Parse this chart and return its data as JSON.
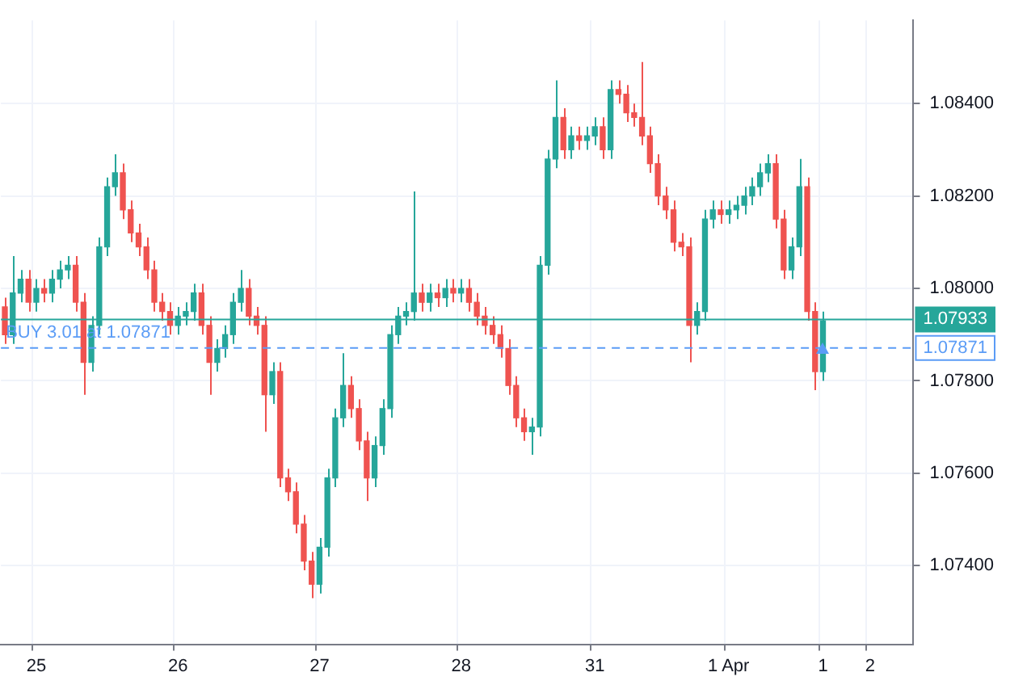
{
  "chart_data": {
    "type": "candlestick",
    "categories": [
      null,
      null,
      null,
      null,
      "25",
      null,
      null,
      null,
      null,
      null,
      null,
      null,
      null,
      null,
      null,
      null,
      null,
      null,
      null,
      null,
      null,
      null,
      "26",
      null,
      null,
      null,
      null,
      null,
      null,
      null,
      null,
      null,
      null,
      null,
      null,
      null,
      null,
      null,
      null,
      null,
      "27",
      null,
      null,
      null,
      null,
      null,
      null,
      null,
      null,
      null,
      null,
      null,
      null,
      null,
      null,
      null,
      null,
      null,
      "28",
      null,
      null,
      null,
      null,
      null,
      null,
      null,
      null,
      null,
      null,
      null,
      null,
      null,
      null,
      null,
      null,
      "31",
      null,
      null,
      null,
      null,
      null,
      null,
      null,
      null,
      null,
      null,
      null,
      null,
      null,
      null,
      null,
      null,
      "1 Apr",
      null,
      null,
      null,
      null,
      null,
      null,
      null,
      null,
      null,
      null,
      null,
      "1",
      null,
      null,
      null,
      null,
      null,
      "2",
      null,
      null,
      null,
      null,
      null
    ],
    "ohlc": [
      [
        1.0796,
        1.0798,
        1.0788,
        1.079
      ],
      [
        1.079,
        1.0807,
        1.0788,
        1.0799
      ],
      [
        1.0799,
        1.0804,
        1.0797,
        1.0802
      ],
      [
        1.0802,
        1.0804,
        1.0795,
        1.0797
      ],
      [
        1.0797,
        1.0802,
        1.0795,
        1.08
      ],
      [
        1.08,
        1.0802,
        1.0797,
        1.0799
      ],
      [
        1.0799,
        1.0804,
        1.0797,
        1.0802
      ],
      [
        1.0802,
        1.0806,
        1.08,
        1.0804
      ],
      [
        1.0804,
        1.0807,
        1.0802,
        1.0805
      ],
      [
        1.0805,
        1.0807,
        1.0795,
        1.0797
      ],
      [
        1.0797,
        1.0799,
        1.0777,
        1.0784
      ],
      [
        1.0784,
        1.0794,
        1.0782,
        1.0792
      ],
      [
        1.0792,
        1.0811,
        1.079,
        1.0809
      ],
      [
        1.0809,
        1.0824,
        1.0807,
        1.0822
      ],
      [
        1.0822,
        1.0829,
        1.082,
        1.0825
      ],
      [
        1.0825,
        1.0827,
        1.0815,
        1.0817
      ],
      [
        1.0817,
        1.0819,
        1.081,
        1.0812
      ],
      [
        1.0812,
        1.0814,
        1.0807,
        1.0809
      ],
      [
        1.0809,
        1.0811,
        1.0802,
        1.0804
      ],
      [
        1.0804,
        1.0806,
        1.0795,
        1.0797
      ],
      [
        1.0797,
        1.0799,
        1.0793,
        1.0795
      ],
      [
        1.0795,
        1.0797,
        1.079,
        1.0792
      ],
      [
        1.0792,
        1.0796,
        1.079,
        1.0794
      ],
      [
        1.0794,
        1.0797,
        1.0792,
        1.0795
      ],
      [
        1.0795,
        1.0801,
        1.0793,
        1.0799
      ],
      [
        1.0799,
        1.0801,
        1.079,
        1.0792
      ],
      [
        1.0792,
        1.0794,
        1.0777,
        1.0784
      ],
      [
        1.0784,
        1.0789,
        1.0782,
        1.0787
      ],
      [
        1.0787,
        1.0792,
        1.0785,
        1.079
      ],
      [
        1.079,
        1.0799,
        1.0788,
        1.0797
      ],
      [
        1.0797,
        1.0804,
        1.0795,
        1.08
      ],
      [
        1.08,
        1.0802,
        1.0792,
        1.0794
      ],
      [
        1.0794,
        1.0796,
        1.079,
        1.0792
      ],
      [
        1.0792,
        1.0794,
        1.0769,
        1.0777
      ],
      [
        1.0777,
        1.0784,
        1.0775,
        1.0782
      ],
      [
        1.0782,
        1.0784,
        1.0757,
        1.0759
      ],
      [
        1.0759,
        1.0761,
        1.0754,
        1.0756
      ],
      [
        1.0756,
        1.0758,
        1.0747,
        1.0749
      ],
      [
        1.0749,
        1.0751,
        1.0739,
        1.0741
      ],
      [
        1.0741,
        1.0743,
        1.0733,
        1.0736
      ],
      [
        1.0736,
        1.0746,
        1.0734,
        1.0744
      ],
      [
        1.0744,
        1.0761,
        1.0742,
        1.0759
      ],
      [
        1.0759,
        1.0774,
        1.0757,
        1.0772
      ],
      [
        1.0772,
        1.0786,
        1.077,
        1.0779
      ],
      [
        1.0779,
        1.0781,
        1.0772,
        1.0774
      ],
      [
        1.0774,
        1.0776,
        1.0765,
        1.0767
      ],
      [
        1.0767,
        1.0769,
        1.0754,
        1.0759
      ],
      [
        1.0759,
        1.0768,
        1.0757,
        1.0766
      ],
      [
        1.0766,
        1.0776,
        1.0764,
        1.0774
      ],
      [
        1.0774,
        1.0792,
        1.0772,
        1.079
      ],
      [
        1.079,
        1.0796,
        1.0788,
        1.0794
      ],
      [
        1.0794,
        1.0797,
        1.0792,
        1.0795
      ],
      [
        1.0795,
        1.0821,
        1.0793,
        1.0799
      ],
      [
        1.0799,
        1.0801,
        1.0795,
        1.0797
      ],
      [
        1.0797,
        1.0801,
        1.0795,
        1.0799
      ],
      [
        1.0799,
        1.0801,
        1.0796,
        1.0798
      ],
      [
        1.0798,
        1.0802,
        1.0796,
        1.08
      ],
      [
        1.08,
        1.0802,
        1.0797,
        1.0799
      ],
      [
        1.0799,
        1.0802,
        1.0797,
        1.08
      ],
      [
        1.08,
        1.0802,
        1.0795,
        1.0797
      ],
      [
        1.0797,
        1.0799,
        1.0792,
        1.0794
      ],
      [
        1.0794,
        1.0796,
        1.079,
        1.0792
      ],
      [
        1.0792,
        1.0794,
        1.0788,
        1.079
      ],
      [
        1.079,
        1.0792,
        1.0785,
        1.0787
      ],
      [
        1.0787,
        1.0789,
        1.0777,
        1.0779
      ],
      [
        1.0779,
        1.0781,
        1.077,
        1.0772
      ],
      [
        1.0772,
        1.0774,
        1.0767,
        1.0769
      ],
      [
        1.0769,
        1.0772,
        1.0764,
        1.077
      ],
      [
        1.077,
        1.0807,
        1.0768,
        1.0805
      ],
      [
        1.0805,
        1.083,
        1.0803,
        1.0828
      ],
      [
        1.0828,
        1.0845,
        1.0826,
        1.0837
      ],
      [
        1.0837,
        1.0839,
        1.0828,
        1.083
      ],
      [
        1.083,
        1.0835,
        1.0828,
        1.0833
      ],
      [
        1.0833,
        1.0835,
        1.083,
        1.0832
      ],
      [
        1.0832,
        1.0835,
        1.083,
        1.0833
      ],
      [
        1.0833,
        1.0837,
        1.0831,
        1.0835
      ],
      [
        1.0835,
        1.0837,
        1.0828,
        1.083
      ],
      [
        1.083,
        1.0845,
        1.0828,
        1.0843
      ],
      [
        1.0843,
        1.0845,
        1.084,
        1.0842
      ],
      [
        1.0842,
        1.0844,
        1.0836,
        1.0838
      ],
      [
        1.0838,
        1.084,
        1.0835,
        1.0837
      ],
      [
        1.0837,
        1.0849,
        1.0831,
        1.0833
      ],
      [
        1.0833,
        1.0835,
        1.0825,
        1.0827
      ],
      [
        1.0827,
        1.0829,
        1.0818,
        1.082
      ],
      [
        1.082,
        1.0822,
        1.0815,
        1.0817
      ],
      [
        1.0817,
        1.0819,
        1.0808,
        1.081
      ],
      [
        1.081,
        1.0812,
        1.0807,
        1.0809
      ],
      [
        1.0809,
        1.0811,
        1.0784,
        1.0792
      ],
      [
        1.0792,
        1.0797,
        1.079,
        1.0795
      ],
      [
        1.0795,
        1.0817,
        1.0793,
        1.0815
      ],
      [
        1.0815,
        1.0819,
        1.0813,
        1.0817
      ],
      [
        1.0817,
        1.0819,
        1.0814,
        1.0816
      ],
      [
        1.0816,
        1.0819,
        1.0814,
        1.0817
      ],
      [
        1.0817,
        1.082,
        1.0815,
        1.0818
      ],
      [
        1.0818,
        1.0822,
        1.0816,
        1.082
      ],
      [
        1.082,
        1.0824,
        1.0818,
        1.0822
      ],
      [
        1.0822,
        1.0827,
        1.082,
        1.0825
      ],
      [
        1.0825,
        1.0829,
        1.0823,
        1.0827
      ],
      [
        1.0827,
        1.0829,
        1.0813,
        1.0815
      ],
      [
        1.0815,
        1.0817,
        1.0802,
        1.0804
      ],
      [
        1.0804,
        1.0811,
        1.0802,
        1.0809
      ],
      [
        1.0809,
        1.0828,
        1.0807,
        1.0822
      ],
      [
        1.0822,
        1.0824,
        1.0793,
        1.0795
      ],
      [
        1.0795,
        1.0797,
        1.0778,
        1.0782
      ],
      [
        1.0782,
        1.0795,
        1.078,
        1.0793
      ],
      null,
      null,
      null,
      null,
      null,
      null,
      null,
      null,
      null,
      null,
      null
    ],
    "colors": [
      "#ef5350",
      "#26a69a",
      "#26a69a",
      "#ef5350",
      "#26a69a",
      "#ef5350",
      "#26a69a",
      "#26a69a",
      "#26a69a",
      "#ef5350",
      "#ef5350",
      "#26a69a",
      "#26a69a",
      "#26a69a",
      "#26a69a",
      "#ef5350",
      "#ef5350",
      "#ef5350",
      "#ef5350",
      "#ef5350",
      "#ef5350",
      "#ef5350",
      "#26a69a",
      "#26a69a",
      "#26a69a",
      "#ef5350",
      "#ef5350",
      "#26a69a",
      "#26a69a",
      "#26a69a",
      "#26a69a",
      "#ef5350",
      "#ef5350",
      "#ef5350",
      "#26a69a",
      "#ef5350",
      "#ef5350",
      "#ef5350",
      "#ef5350",
      "#ef5350",
      "#26a69a",
      "#26a69a",
      "#26a69a",
      "#26a69a",
      "#ef5350",
      "#ef5350",
      "#ef5350",
      "#26a69a",
      "#26a69a",
      "#26a69a",
      "#26a69a",
      "#26a69a",
      "#26a69a",
      "#ef5350",
      "#26a69a",
      "#ef5350",
      "#26a69a",
      "#ef5350",
      "#26a69a",
      "#ef5350",
      "#ef5350",
      "#ef5350",
      "#ef5350",
      "#ef5350",
      "#ef5350",
      "#ef5350",
      "#ef5350",
      "#26a69a",
      "#26a69a",
      "#26a69a",
      "#26a69a",
      "#ef5350",
      "#26a69a",
      "#ef5350",
      "#26a69a",
      "#26a69a",
      "#ef5350",
      "#26a69a",
      "#ef5350",
      "#ef5350",
      "#ef5350",
      "#ef5350",
      "#ef5350",
      "#ef5350",
      "#ef5350",
      "#ef5350",
      "#ef5350",
      "#ef5350",
      "#26a69a",
      "#26a69a",
      "#26a69a",
      "#ef5350",
      "#26a69a",
      "#26a69a",
      "#26a69a",
      "#26a69a",
      "#26a69a",
      "#26a69a",
      "#ef5350",
      "#ef5350",
      "#26a69a",
      "#26a69a",
      "#ef5350",
      "#ef5350",
      "#26a69a",
      null,
      null,
      null,
      null,
      null,
      null,
      null,
      null,
      null,
      null,
      null
    ],
    "ylim": [
      1.0723,
      1.0858
    ],
    "yticks": [
      {
        "value": 1.074,
        "label": "1.07400"
      },
      {
        "value": 1.076,
        "label": "1.07600"
      },
      {
        "value": 1.078,
        "label": "1.07800"
      },
      {
        "value": 1.08,
        "label": "1.08000"
      },
      {
        "value": 1.082,
        "label": "1.08200"
      },
      {
        "value": 1.084,
        "label": "1.08400"
      }
    ],
    "ref_lines": [
      {
        "axis": "y",
        "value": 1.07933,
        "label": "1.07933",
        "color": "#26a69a",
        "line_style": "solid"
      },
      {
        "axis": "y",
        "value": 1.07871,
        "label": "1.07871",
        "color": "#5b9cf6",
        "line_style": "dashed"
      }
    ],
    "annotations": [
      {
        "text": "BUY 3.01 at 1.07871",
        "y": 1.07871
      }
    ],
    "grid": true,
    "legend": false
  }
}
